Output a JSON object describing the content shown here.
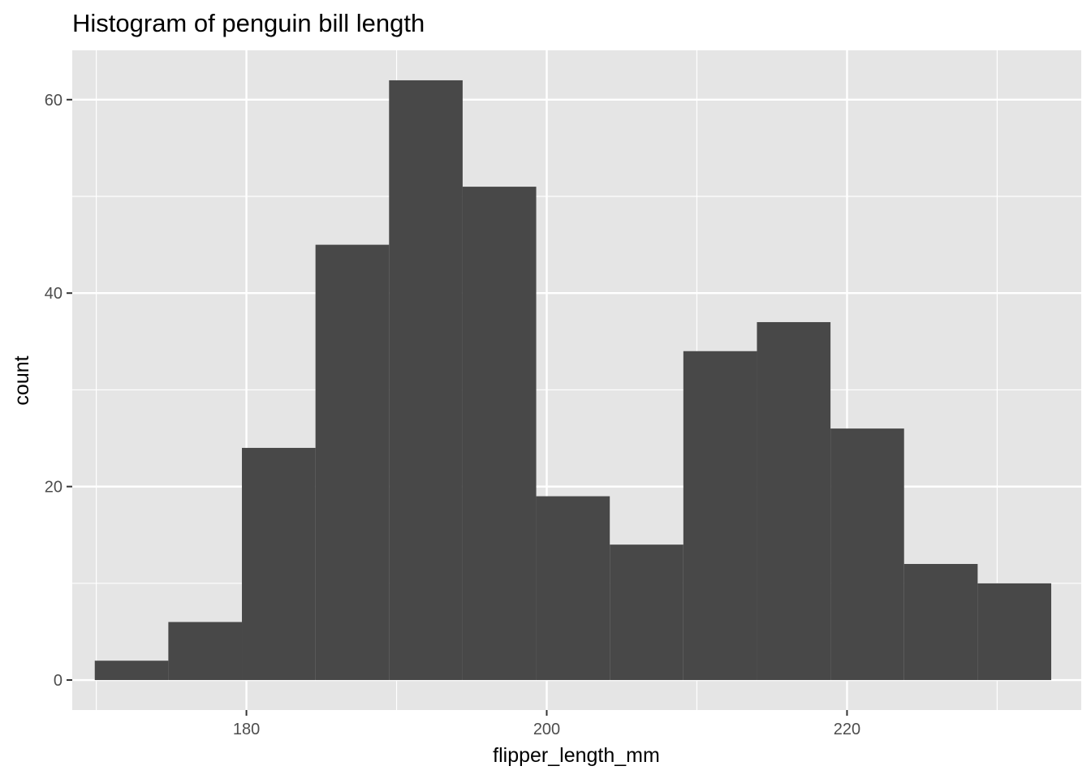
{
  "chart_data": {
    "type": "bar",
    "title": "Histogram of penguin bill length",
    "xlabel": "flipper_length_mm",
    "ylabel": "count",
    "x_ticks": [
      180,
      200,
      220
    ],
    "y_ticks": [
      0,
      20,
      40,
      60
    ],
    "xlim": [
      168.4,
      235.6
    ],
    "ylim": [
      -3.1,
      65.1
    ],
    "bins": [
      {
        "x0": 169.9,
        "x1": 174.8,
        "count": 2
      },
      {
        "x0": 174.8,
        "x1": 179.7,
        "count": 6
      },
      {
        "x0": 179.7,
        "x1": 184.6,
        "count": 24
      },
      {
        "x0": 184.6,
        "x1": 189.5,
        "count": 45
      },
      {
        "x0": 189.5,
        "x1": 194.4,
        "count": 62
      },
      {
        "x0": 194.4,
        "x1": 199.3,
        "count": 51
      },
      {
        "x0": 199.3,
        "x1": 204.2,
        "count": 19
      },
      {
        "x0": 204.2,
        "x1": 209.1,
        "count": 14
      },
      {
        "x0": 209.1,
        "x1": 214.0,
        "count": 34
      },
      {
        "x0": 214.0,
        "x1": 218.9,
        "count": 37
      },
      {
        "x0": 218.9,
        "x1": 223.8,
        "count": 26
      },
      {
        "x0": 223.8,
        "x1": 228.7,
        "count": 12
      },
      {
        "x0": 228.7,
        "x1": 233.6,
        "count": 10
      }
    ],
    "colors": {
      "panel_background": "#e5e5e5",
      "grid": "#ffffff",
      "bar_fill": "#484848",
      "tick_text": "#4d4d4d",
      "text": "#000000"
    },
    "grid": true
  }
}
